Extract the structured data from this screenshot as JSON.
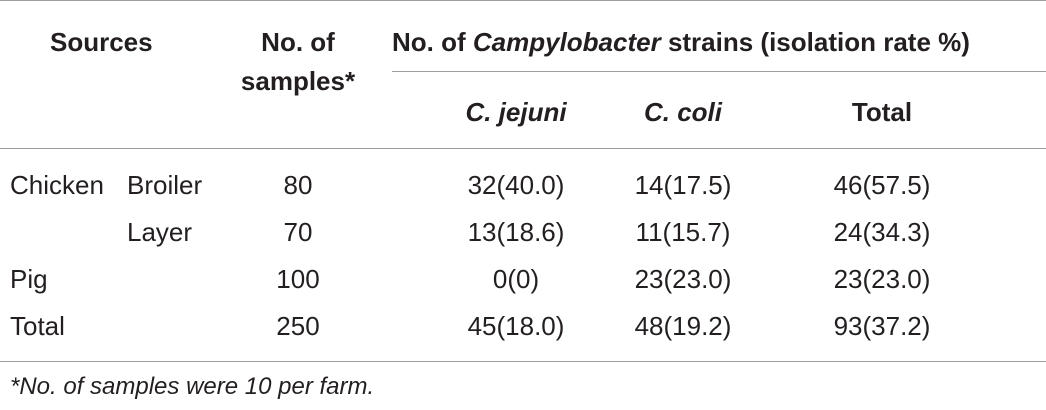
{
  "table": {
    "header": {
      "sources": "Sources",
      "samples_line1": "No. of",
      "samples_line2": "samples*",
      "strains_prefix": "No. of ",
      "strains_genus": "Campylobacter",
      "strains_suffix": " strains (isolation rate %)",
      "sub_jejuni": "C. jejuni",
      "sub_coli": "C. coli",
      "sub_total": "Total"
    },
    "rows": [
      {
        "source": "Chicken",
        "type": "Broiler",
        "samples": "80",
        "jejuni": "32(40.0)",
        "coli": "14(17.5)",
        "total": "46(57.5)"
      },
      {
        "source": "",
        "type": "Layer",
        "samples": "70",
        "jejuni": "13(18.6)",
        "coli": "11(15.7)",
        "total": "24(34.3)"
      },
      {
        "source": "Pig",
        "type": "",
        "samples": "100",
        "jejuni": "0(0)",
        "coli": "23(23.0)",
        "total": "23(23.0)"
      },
      {
        "source": "Total",
        "type": "",
        "samples": "250",
        "jejuni": "45(18.0)",
        "coli": "48(19.2)",
        "total": "93(37.2)"
      }
    ],
    "footnote": "*No. of samples were 10 per farm."
  }
}
